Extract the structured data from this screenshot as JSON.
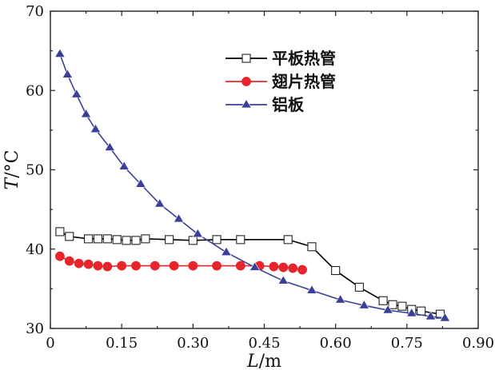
{
  "chart_data": {
    "type": "line",
    "title": "",
    "xlabel": "L/m",
    "ylabel": "T/°C",
    "xlabel_parts": {
      "symbol": "L",
      "unit": "/m"
    },
    "ylabel_parts": {
      "symbol": "T",
      "unit": "/°C"
    },
    "xlim": [
      0,
      0.9
    ],
    "ylim": [
      30,
      70
    ],
    "xticks": [
      0,
      0.15,
      0.3,
      0.45,
      0.6,
      0.75,
      0.9
    ],
    "xtick_labels": [
      "0",
      "0.15",
      "0.30",
      "0.45",
      "0.60",
      "0.75",
      "0.90"
    ],
    "yticks": [
      30,
      40,
      50,
      60,
      70
    ],
    "ytick_labels": [
      "30",
      "40",
      "50",
      "60",
      "70"
    ],
    "legend_position": "upper-center",
    "series": [
      {
        "name": "平板热管",
        "color": "#000000",
        "marker": "square-open",
        "x": [
          0.02,
          0.04,
          0.08,
          0.1,
          0.12,
          0.14,
          0.16,
          0.18,
          0.2,
          0.25,
          0.3,
          0.35,
          0.4,
          0.5,
          0.55,
          0.6,
          0.65,
          0.7,
          0.72,
          0.74,
          0.76,
          0.78,
          0.82
        ],
        "y": [
          42.2,
          41.6,
          41.3,
          41.3,
          41.3,
          41.2,
          41.1,
          41.1,
          41.3,
          41.2,
          41.1,
          41.2,
          41.2,
          41.2,
          40.3,
          37.3,
          35.2,
          33.5,
          33.0,
          32.8,
          32.4,
          32.2,
          31.8
        ]
      },
      {
        "name": "翅片热管",
        "color": "#e8252a",
        "marker": "circle-filled",
        "x": [
          0.02,
          0.04,
          0.06,
          0.08,
          0.1,
          0.12,
          0.15,
          0.18,
          0.22,
          0.26,
          0.3,
          0.35,
          0.4,
          0.44,
          0.47,
          0.49,
          0.51,
          0.53
        ],
        "y": [
          39.1,
          38.5,
          38.2,
          38.1,
          37.9,
          37.8,
          37.9,
          37.9,
          37.9,
          37.9,
          37.9,
          37.9,
          37.9,
          37.9,
          37.8,
          37.7,
          37.6,
          37.4
        ]
      },
      {
        "name": "铝板",
        "color": "#3a3f97",
        "marker": "triangle-filled",
        "x": [
          0.02,
          0.036,
          0.055,
          0.075,
          0.095,
          0.125,
          0.155,
          0.19,
          0.23,
          0.27,
          0.31,
          0.37,
          0.43,
          0.49,
          0.55,
          0.61,
          0.66,
          0.71,
          0.76,
          0.8,
          0.83
        ],
        "y": [
          64.6,
          62.0,
          59.5,
          57.0,
          55.1,
          52.8,
          50.4,
          48.2,
          45.7,
          43.8,
          41.9,
          39.6,
          37.7,
          36.0,
          34.8,
          33.6,
          32.9,
          32.3,
          31.9,
          31.5,
          31.3
        ]
      }
    ]
  }
}
